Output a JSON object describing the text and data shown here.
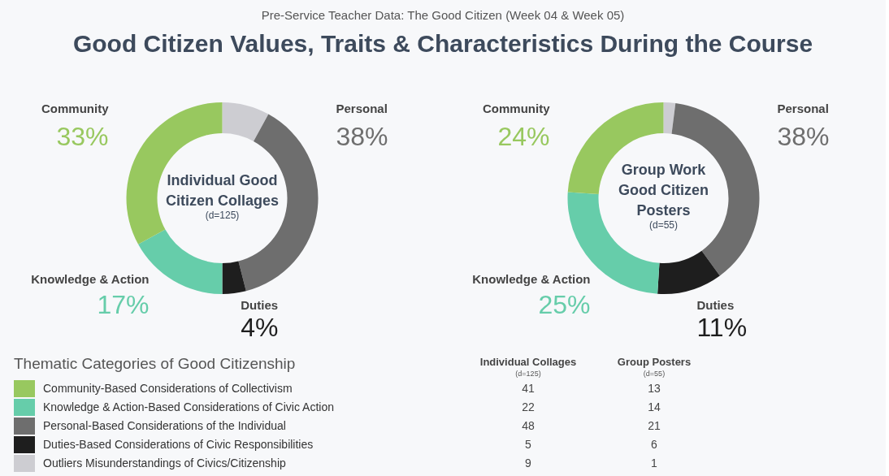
{
  "chart_data": [
    {
      "type": "donut",
      "title": "Good Citizen Values, Traits & Characteristics During the Course",
      "subtitle": "Pre-Service Teacher Data: The Good Citizen (Week 04 & Week 05)",
      "annotations": [
        "Individual Good",
        "Citizen Collages",
        "(d=125)"
      ],
      "categories": [
        null,
        "Personal",
        "Duties",
        "Knowledge & Action",
        "Community"
      ],
      "values": [
        8,
        38,
        4,
        17,
        33
      ],
      "colors": [
        "#cdcdd2",
        "#6e6e6e",
        "#1e1e1e",
        "#66cdaa",
        "#98c85f"
      ],
      "value_labels": [
        null,
        "38%",
        "4%",
        "17%",
        "33%"
      ]
    },
    {
      "type": "donut",
      "annotations": [
        "Group Work",
        "Good Citizen",
        "Posters",
        "(d=55)"
      ],
      "categories": [
        null,
        "Personal",
        "Duties",
        "Knowledge & Action",
        "Community"
      ],
      "values": [
        2,
        38,
        11,
        25,
        24
      ],
      "colors": [
        "#cdcdd2",
        "#6e6e6e",
        "#1e1e1e",
        "#66cdaa",
        "#98c85f"
      ],
      "value_labels": [
        null,
        "38%",
        "11%",
        "25%",
        "24%"
      ]
    },
    {
      "type": "other",
      "title": "Thematic Categories of Good Citizenship",
      "categories": [
        "Community-Based Considerations of Collectivism",
        "Knowledge & Action-Based Considerations of Civic Action",
        "Personal-Based Considerations of the Individual",
        "Duties-Based Considerations of Civic Responsibilities",
        "Outliers Misunderstandings of Civics/Citizenship"
      ],
      "colors": [
        "#98c85f",
        "#66cdaa",
        "#6e6e6e",
        "#1e1e1e",
        "#cdcdd2"
      ],
      "annotations": [
        "(d=125)",
        "(d=55)"
      ],
      "data_labels": true,
      "series": [
        {
          "name": "Individual Collages",
          "values": [
            41,
            22,
            48,
            5,
            9
          ]
        },
        {
          "name": "Group Posters",
          "values": [
            13,
            14,
            21,
            6,
            1
          ]
        }
      ]
    }
  ]
}
